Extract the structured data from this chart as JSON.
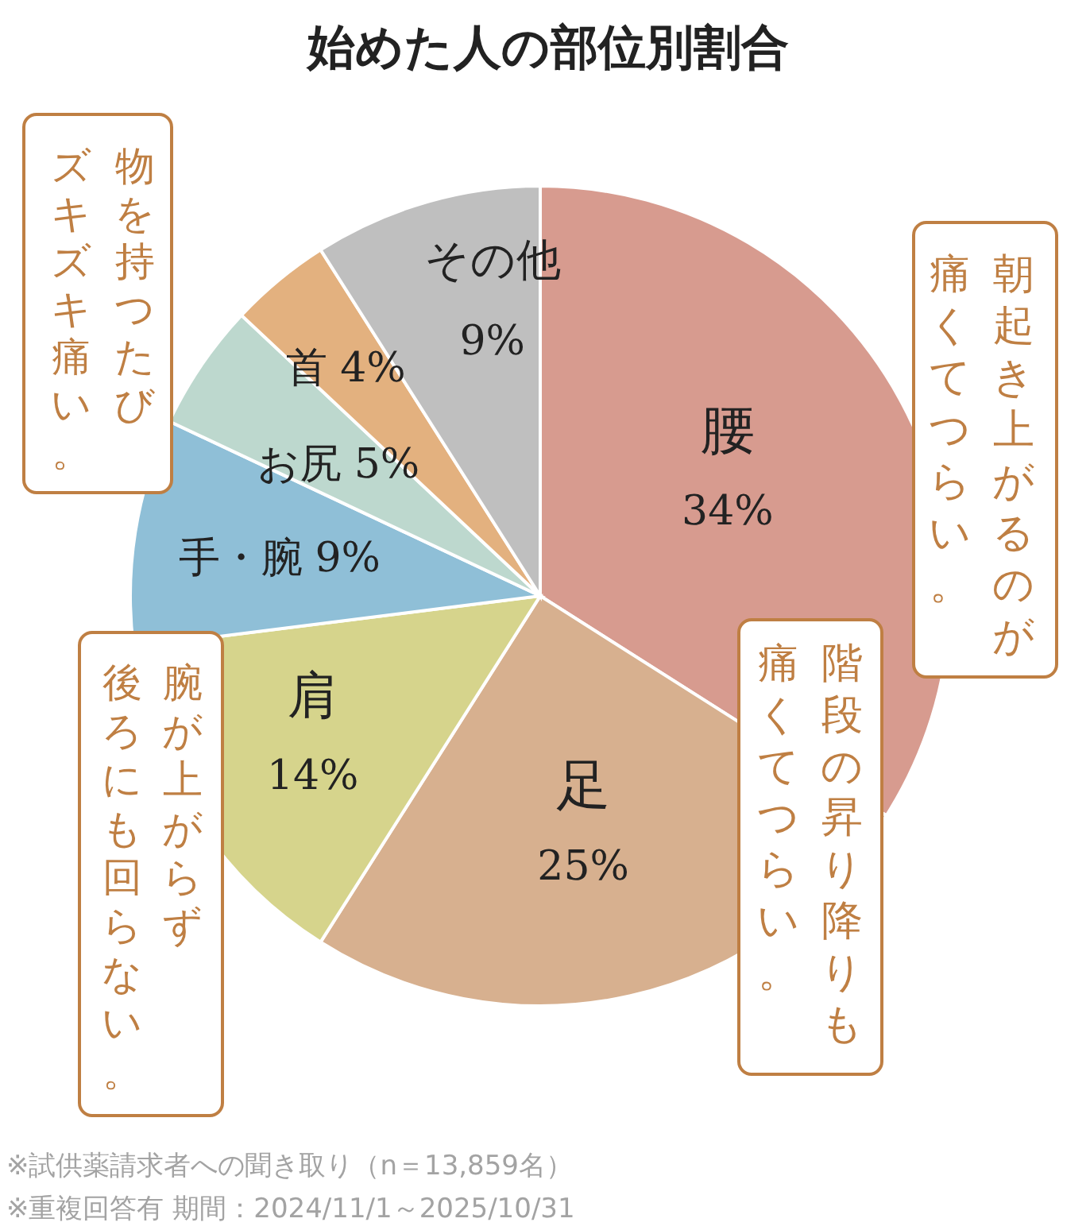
{
  "chart_data": {
    "type": "pie",
    "title": "始めた人の部位別割合",
    "categories": [
      "腰",
      "足",
      "肩",
      "手・腕",
      "お尻",
      "首",
      "その他"
    ],
    "values": [
      34,
      25,
      14,
      9,
      5,
      4,
      9
    ],
    "value_labels": [
      "34%",
      "25%",
      "14%",
      "9%",
      "5%",
      "4%",
      "9%"
    ],
    "colors": [
      "#d79b8f",
      "#d7b08f",
      "#d6d48c",
      "#8fbfd7",
      "#bdd8ce",
      "#e3b17f",
      "#bfbfbf"
    ],
    "annotations": [
      "物を持つたび",
      "ズキズキ痛い。",
      "朝起き上がるのが",
      "痛くてつらい。",
      "階段の昇り降りも",
      "痛くてつらい。",
      "腕が上がらず",
      "後ろにも回らない。",
      "※試供薬請求者への聞き取り（n＝13,859名）",
      "※重複回答有 期間：2024/11/1～2025/10/31"
    ]
  }
}
